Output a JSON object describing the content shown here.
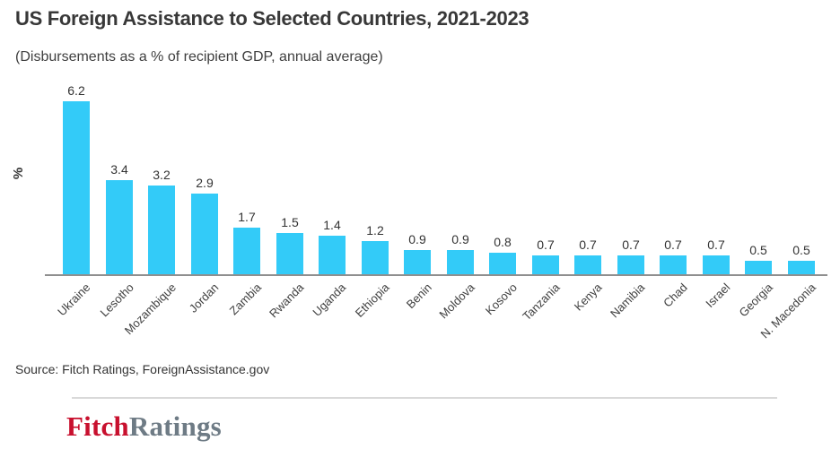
{
  "header": {
    "title": "US Foreign Assistance to Selected Countries, 2021-2023",
    "subtitle": "(Disbursements as a % of recipient GDP, annual average)"
  },
  "chart_data": {
    "type": "bar",
    "title": "US Foreign Assistance to Selected Countries, 2021-2023",
    "subtitle": "(Disbursements as a % of recipient GDP, annual average)",
    "categories": [
      "Ukraine",
      "Lesotho",
      "Mozambique",
      "Jordan",
      "Zambia",
      "Rwanda",
      "Uganda",
      "Ethiopia",
      "Benin",
      "Moldova",
      "Kosovo",
      "Tanzania",
      "Kenya",
      "Namibia",
      "Chad",
      "Israel",
      "Georgia",
      "N. Macedonia"
    ],
    "values": [
      6.2,
      3.4,
      3.2,
      2.9,
      1.7,
      1.5,
      1.4,
      1.2,
      0.9,
      0.9,
      0.8,
      0.7,
      0.7,
      0.7,
      0.7,
      0.7,
      0.5,
      0.5
    ],
    "xlabel": "",
    "ylabel": "%",
    "ylim": [
      0,
      6.6
    ],
    "grid": false,
    "legend": false,
    "value_labels": true,
    "bar_color": "#33cbf8"
  },
  "footer": {
    "source": "Source: Fitch Ratings, ForeignAssistance.gov",
    "logo_part1": "Fitch",
    "logo_part2": "Ratings"
  },
  "colors": {
    "bar": "#33cbf8",
    "axis": "#8f8f8f",
    "title_text": "#383838",
    "label_text": "#333333",
    "divider": "#d9d9d9",
    "logo_red": "#c8102e",
    "logo_gray": "#6e7b85"
  }
}
